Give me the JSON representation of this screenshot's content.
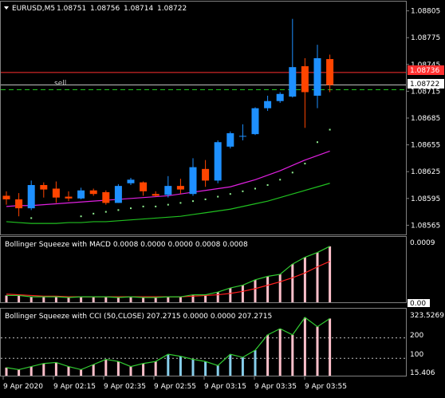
{
  "chart_title": {
    "symbol": "EURUSD,M5",
    "open": "1.08751",
    "high": "1.08756",
    "low": "1.08714",
    "close": "1.08722"
  },
  "main_price_axis": [
    "1.08805",
    "1.08775",
    "1.08745",
    "1.08715",
    "1.08685",
    "1.08655",
    "1.08625",
    "1.08595",
    "1.08565"
  ],
  "red_line_label": "1.08736",
  "bid_label": "1.08722",
  "sell_label": "sell",
  "macd_panel": {
    "title": "Bollinger Squeeze with MACD 0.0008 0.0000 0.0000 0.0008 0.0008",
    "axis_top": "0.0009",
    "axis_bottom": "0.00"
  },
  "cci_panel": {
    "title": "Bollinger Squeeze with CCI (50,CLOSE) 207.2715 0.0000 0.0000 207.2715",
    "axis": [
      "323.5269",
      "200",
      "100",
      "15.406"
    ]
  },
  "time_axis": [
    "9 Apr 2020",
    "9 Apr 02:15",
    "9 Apr 02:35",
    "9 Apr 02:55",
    "9 Apr 03:15",
    "9 Apr 03:35",
    "9 Apr 03:55"
  ],
  "colors": {
    "bull": "#1e90ff",
    "bear": "#ff4500",
    "ma_fast": "#e020e0",
    "ma_slow": "#20c020",
    "dots": "#90ee90",
    "macd_hist": "#ffc0cb",
    "macd_signal": "#ff2020",
    "macd_line": "#32cd32",
    "cci_hist_pink": "#ffc0cb",
    "cci_hist_blue": "#87ceeb",
    "cci_line": "#32cd32",
    "red_level": "#ff3030",
    "bid_line": "#c0c0c0",
    "sell_line": "#20c020"
  },
  "chart_data": {
    "type": "candlestick",
    "xlabel": "",
    "ylabel": "",
    "ylim": [
      1.0856,
      1.0881
    ],
    "candles": [
      {
        "o": 1.08598,
        "h": 1.08603,
        "l": 1.08588,
        "c": 1.08594
      },
      {
        "o": 1.08594,
        "h": 1.08601,
        "l": 1.08575,
        "c": 1.08584
      },
      {
        "o": 1.08584,
        "h": 1.08615,
        "l": 1.08582,
        "c": 1.0861
      },
      {
        "o": 1.0861,
        "h": 1.08613,
        "l": 1.08596,
        "c": 1.08605
      },
      {
        "o": 1.08606,
        "h": 1.08614,
        "l": 1.0859,
        "c": 1.08596
      },
      {
        "o": 1.08597,
        "h": 1.08603,
        "l": 1.08592,
        "c": 1.08595
      },
      {
        "o": 1.08595,
        "h": 1.08607,
        "l": 1.08594,
        "c": 1.08604
      },
      {
        "o": 1.08604,
        "h": 1.08606,
        "l": 1.08598,
        "c": 1.086
      },
      {
        "o": 1.08602,
        "h": 1.08604,
        "l": 1.08588,
        "c": 1.0859
      },
      {
        "o": 1.0859,
        "h": 1.08611,
        "l": 1.0859,
        "c": 1.08609
      },
      {
        "o": 1.08612,
        "h": 1.08618,
        "l": 1.0861,
        "c": 1.08616
      },
      {
        "o": 1.08613,
        "h": 1.08614,
        "l": 1.08598,
        "c": 1.08603
      },
      {
        "o": 1.086,
        "h": 1.08603,
        "l": 1.08597,
        "c": 1.08598
      },
      {
        "o": 1.08599,
        "h": 1.0862,
        "l": 1.08596,
        "c": 1.08609
      },
      {
        "o": 1.08609,
        "h": 1.08617,
        "l": 1.086,
        "c": 1.08605
      },
      {
        "o": 1.086,
        "h": 1.0864,
        "l": 1.08598,
        "c": 1.0863
      },
      {
        "o": 1.08628,
        "h": 1.08638,
        "l": 1.08608,
        "c": 1.08615
      },
      {
        "o": 1.08615,
        "h": 1.0866,
        "l": 1.08612,
        "c": 1.08658
      },
      {
        "o": 1.08653,
        "h": 1.0867,
        "l": 1.08651,
        "c": 1.08668
      },
      {
        "o": 1.08665,
        "h": 1.08678,
        "l": 1.0866,
        "c": 1.08665
      },
      {
        "o": 1.08667,
        "h": 1.08697,
        "l": 1.08666,
        "c": 1.08696
      },
      {
        "o": 1.08696,
        "h": 1.0871,
        "l": 1.08693,
        "c": 1.08704
      },
      {
        "o": 1.08704,
        "h": 1.08714,
        "l": 1.08702,
        "c": 1.08712
      },
      {
        "o": 1.08709,
        "h": 1.08796,
        "l": 1.08708,
        "c": 1.08742
      },
      {
        "o": 1.08743,
        "h": 1.08752,
        "l": 1.08674,
        "c": 1.08714
      },
      {
        "o": 1.0871,
        "h": 1.08767,
        "l": 1.08696,
        "c": 1.08752
      },
      {
        "o": 1.08751,
        "h": 1.08756,
        "l": 1.08714,
        "c": 1.08722
      }
    ],
    "ma_fast": [
      1.08586,
      1.08587,
      1.08587,
      1.08588,
      1.08589,
      1.0859,
      1.08591,
      1.08592,
      1.08593,
      1.08594,
      1.08595,
      1.08596,
      1.08597,
      1.08598,
      1.086,
      1.08602,
      1.08604,
      1.08606,
      1.08608,
      1.08612,
      1.08616,
      1.08621,
      1.08626,
      1.08632,
      1.08638,
      1.08643,
      1.08648
    ],
    "ma_slow": [
      1.08569,
      1.08568,
      1.08567,
      1.08567,
      1.08567,
      1.08568,
      1.08568,
      1.08569,
      1.08569,
      1.0857,
      1.08571,
      1.08572,
      1.08573,
      1.08574,
      1.08575,
      1.08577,
      1.08579,
      1.08581,
      1.08583,
      1.08586,
      1.08589,
      1.08592,
      1.08596,
      1.086,
      1.08604,
      1.08608,
      1.08612
    ],
    "dots": [
      null,
      null,
      1.08573,
      null,
      null,
      null,
      1.08575,
      1.08578,
      1.0858,
      1.08582,
      1.08584,
      1.08586,
      1.08586,
      1.08588,
      1.0859,
      1.08592,
      1.08594,
      1.08597,
      1.086,
      1.08603,
      1.08606,
      1.0861,
      1.08616,
      1.08624,
      1.08634,
      1.08658,
      1.08672
    ],
    "macd_hist": [
      0.0001,
      0.0001,
      8e-05,
      8e-05,
      8e-05,
      7e-05,
      8e-05,
      8e-05,
      8e-05,
      7e-05,
      8e-05,
      7e-05,
      7e-05,
      8e-05,
      8e-05,
      0.00011,
      0.00011,
      0.00015,
      0.00021,
      0.00025,
      0.00033,
      0.00038,
      0.00041,
      0.00056,
      0.00066,
      0.00073,
      0.00082
    ],
    "macd_signal": [
      0.00012,
      0.00011,
      0.0001,
      9e-05,
      9e-05,
      8e-05,
      8e-05,
      8e-05,
      8e-05,
      8e-05,
      8e-05,
      8e-05,
      8e-05,
      8e-05,
      8e-05,
      9e-05,
      0.0001,
      0.00011,
      0.00013,
      0.00016,
      0.0002,
      0.00025,
      0.0003,
      0.00036,
      0.00043,
      0.00052,
      0.0006
    ],
    "cci_hist": [
      55,
      45,
      60,
      75,
      80,
      60,
      45,
      70,
      95,
      85,
      60,
      75,
      85,
      120,
      110,
      95,
      85,
      65,
      120,
      105,
      140,
      215,
      245,
      215,
      300,
      255,
      295
    ],
    "cci_hist_blue": [
      false,
      false,
      false,
      false,
      false,
      false,
      false,
      false,
      false,
      false,
      false,
      false,
      false,
      true,
      true,
      true,
      true,
      true,
      true,
      true,
      true,
      false,
      false,
      false,
      false,
      false,
      false
    ]
  }
}
